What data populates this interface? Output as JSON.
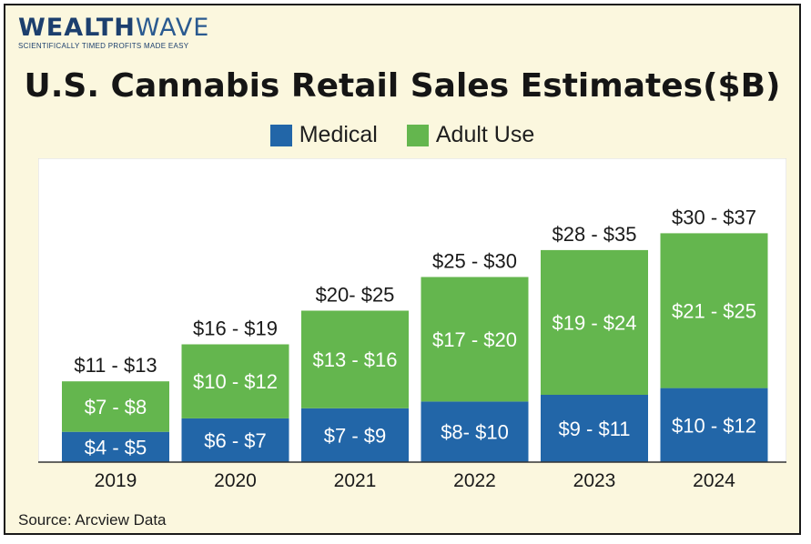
{
  "logo": {
    "brand_part1": "WEALTH",
    "brand_part2": "WAVE",
    "tagline": "SCIENTIFICALLY TIMED PROFITS MADE EASY"
  },
  "title": "U.S. Cannabis Retail Sales Estimates($B)",
  "source": "Source: Arcview Data",
  "colors": {
    "medical": "#2266a8",
    "adult_use": "#64b64e",
    "plot_bg": "#ffffff",
    "frame_bg": "#fbf7de"
  },
  "chart_data": {
    "type": "bar",
    "stacked": true,
    "title": "U.S. Cannabis Retail Sales Estimates($B)",
    "categories": [
      "2019",
      "2020",
      "2021",
      "2022",
      "2023",
      "2024"
    ],
    "series": [
      {
        "name": "Medical",
        "color": "#2266a8",
        "values": [
          4.5,
          6.5,
          8,
          9,
          10,
          11
        ],
        "labels": [
          "$4 - $5",
          "$6 - $7",
          "$7 - $9",
          "$8- $10",
          "$9 - $11",
          "$10 - $12"
        ]
      },
      {
        "name": "Adult Use",
        "color": "#64b64e",
        "values": [
          7.5,
          11,
          14.5,
          18.5,
          21.5,
          23
        ],
        "labels": [
          "$7 - $8",
          "$10 - $12",
          "$13 - $16",
          "$17 - $20",
          "$19 - $24",
          "$21 - $25"
        ]
      }
    ],
    "total_labels": [
      "$11 - $13",
      "$16 - $19",
      "$20- $25",
      "$25 - $30",
      "$28 - $35",
      "$30 - $37"
    ],
    "ylim": [
      0,
      40
    ],
    "grid": false,
    "legend_position": "top-center"
  }
}
